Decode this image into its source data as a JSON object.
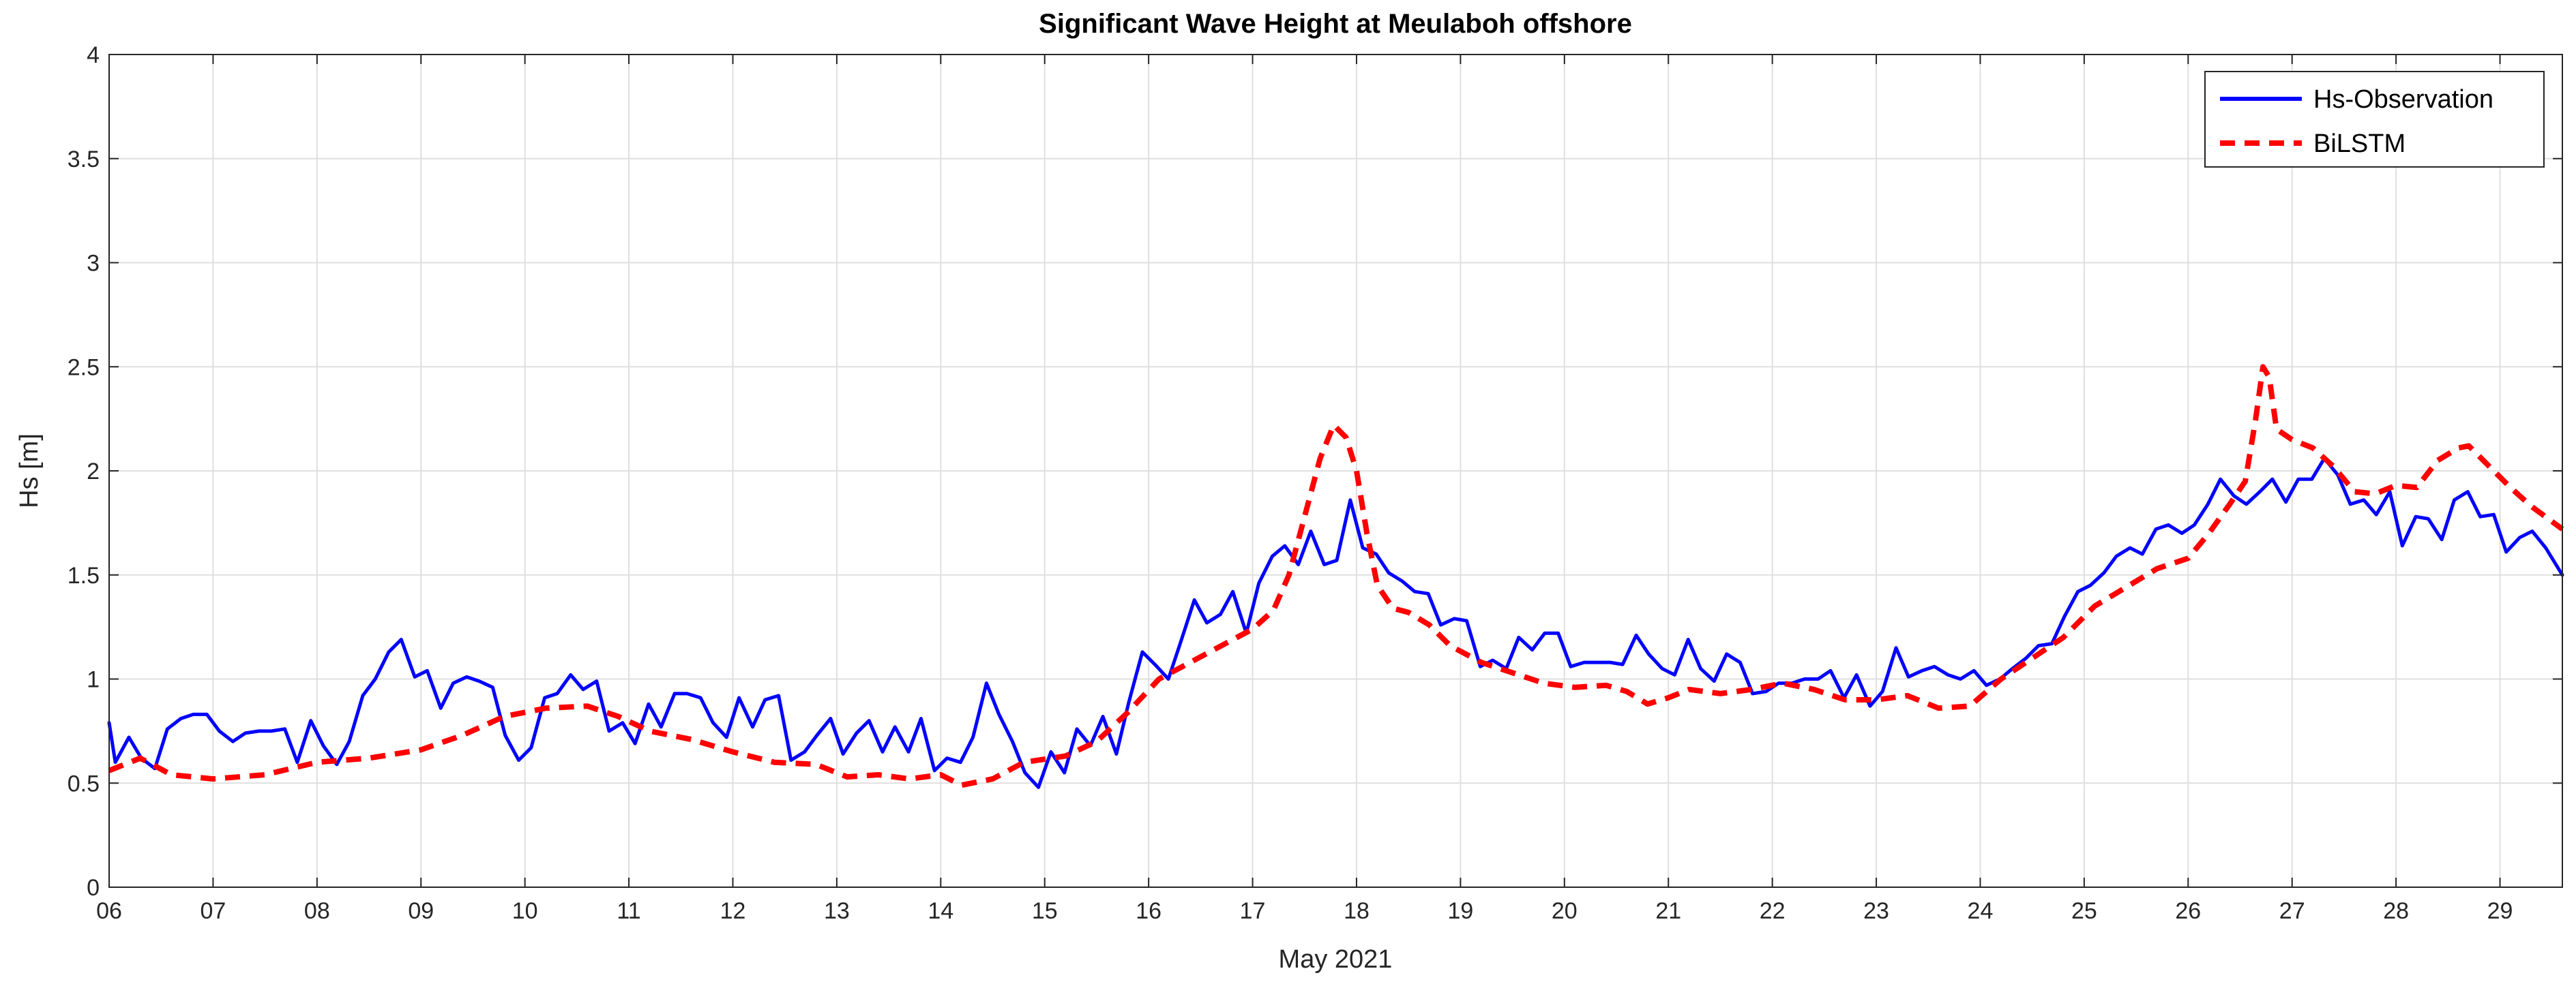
{
  "chart_data": {
    "type": "line",
    "title": "Significant Wave Height at Meulaboh offshore",
    "xlabel": "May 2021",
    "ylabel": "Hs [m]",
    "x_unit": "day of May 2021",
    "xlim": [
      6,
      29.6
    ],
    "ylim": [
      0,
      4
    ],
    "x_ticks": [
      6,
      7,
      8,
      9,
      10,
      11,
      12,
      13,
      14,
      15,
      16,
      17,
      18,
      19,
      20,
      21,
      22,
      23,
      24,
      25,
      26,
      27,
      28,
      29
    ],
    "x_tick_labels": [
      "06",
      "07",
      "08",
      "09",
      "10",
      "11",
      "12",
      "13",
      "14",
      "15",
      "16",
      "17",
      "18",
      "19",
      "20",
      "21",
      "22",
      "23",
      "24",
      "25",
      "26",
      "27",
      "28",
      "29"
    ],
    "y_ticks": [
      0,
      0.5,
      1,
      1.5,
      2,
      2.5,
      3,
      3.5,
      4
    ],
    "y_tick_labels": [
      "0",
      "0.5",
      "1",
      "1.5",
      "2",
      "2.5",
      "3",
      "3.5",
      "4"
    ],
    "grid": true,
    "legend_position": "top-right",
    "series": [
      {
        "name": "Hs-Observation",
        "color": "#0000ff",
        "style": "solid",
        "x": [
          6.0,
          6.06,
          6.19,
          6.31,
          6.44,
          6.56,
          6.69,
          6.81,
          6.94,
          7.06,
          7.19,
          7.31,
          7.44,
          7.56,
          7.69,
          7.81,
          7.94,
          8.06,
          8.19,
          8.31,
          8.44,
          8.56,
          8.69,
          8.81,
          8.94,
          9.06,
          9.19,
          9.31,
          9.44,
          9.56,
          9.69,
          9.81,
          9.94,
          10.06,
          10.19,
          10.31,
          10.44,
          10.56,
          10.69,
          10.81,
          10.94,
          11.06,
          11.19,
          11.31,
          11.44,
          11.56,
          11.69,
          11.81,
          11.94,
          12.06,
          12.19,
          12.31,
          12.44,
          12.56,
          12.69,
          12.81,
          12.94,
          13.06,
          13.19,
          13.31,
          13.44,
          13.56,
          13.69,
          13.81,
          13.94,
          14.06,
          14.19,
          14.31,
          14.44,
          14.56,
          14.69,
          14.81,
          14.94,
          15.06,
          15.19,
          15.31,
          15.44,
          15.56,
          15.69,
          15.81,
          15.94,
          16.06,
          16.19,
          16.31,
          16.44,
          16.56,
          16.69,
          16.81,
          16.94,
          17.06,
          17.19,
          17.31,
          17.44,
          17.56,
          17.69,
          17.81,
          17.94,
          18.06,
          18.19,
          18.31,
          18.44,
          18.56,
          18.69,
          18.81,
          18.94,
          19.06,
          19.19,
          19.31,
          19.44,
          19.56,
          19.69,
          19.81,
          19.94,
          20.06,
          20.19,
          20.31,
          20.44,
          20.56,
          20.69,
          20.81,
          20.94,
          21.06,
          21.19,
          21.31,
          21.44,
          21.56,
          21.69,
          21.81,
          21.94,
          22.06,
          22.19,
          22.31,
          22.44,
          22.56,
          22.69,
          22.81,
          22.94,
          23.06,
          23.19,
          23.31,
          23.44,
          23.56,
          23.69,
          23.81,
          23.94,
          24.06,
          24.19,
          24.31,
          24.44,
          24.56,
          24.69,
          24.81,
          24.94,
          25.06,
          25.19,
          25.31,
          25.44,
          25.56,
          25.69,
          25.81,
          25.94,
          26.06,
          26.19,
          26.31,
          26.44,
          26.56,
          26.69,
          26.81,
          26.94,
          27.06,
          27.19,
          27.31,
          27.44,
          27.56,
          27.69,
          27.81,
          27.94,
          28.06,
          28.19,
          28.31,
          28.44,
          28.56,
          28.69,
          28.81,
          28.94,
          29.06,
          29.19,
          29.31,
          29.44,
          29.6
        ],
        "values": [
          0.79,
          0.6,
          0.72,
          0.62,
          0.57,
          0.76,
          0.81,
          0.83,
          0.83,
          0.75,
          0.7,
          0.74,
          0.75,
          0.75,
          0.76,
          0.6,
          0.8,
          0.68,
          0.59,
          0.7,
          0.92,
          1.0,
          1.13,
          1.19,
          1.01,
          1.04,
          0.86,
          0.98,
          1.01,
          0.99,
          0.96,
          0.73,
          0.61,
          0.67,
          0.91,
          0.93,
          1.02,
          0.95,
          0.99,
          0.75,
          0.79,
          0.69,
          0.88,
          0.77,
          0.93,
          0.93,
          0.91,
          0.79,
          0.72,
          0.91,
          0.77,
          0.9,
          0.92,
          0.61,
          0.65,
          0.73,
          0.81,
          0.64,
          0.74,
          0.8,
          0.65,
          0.77,
          0.65,
          0.81,
          0.56,
          0.62,
          0.6,
          0.72,
          0.98,
          0.83,
          0.7,
          0.55,
          0.48,
          0.65,
          0.55,
          0.76,
          0.68,
          0.82,
          0.64,
          0.89,
          1.13,
          1.07,
          1.0,
          1.18,
          1.38,
          1.27,
          1.31,
          1.42,
          1.22,
          1.46,
          1.59,
          1.64,
          1.55,
          1.71,
          1.55,
          1.57,
          1.86,
          1.63,
          1.6,
          1.51,
          1.47,
          1.42,
          1.41,
          1.26,
          1.29,
          1.28,
          1.06,
          1.09,
          1.05,
          1.2,
          1.14,
          1.22,
          1.22,
          1.06,
          1.08,
          1.08,
          1.08,
          1.07,
          1.21,
          1.12,
          1.05,
          1.02,
          1.19,
          1.05,
          0.99,
          1.12,
          1.08,
          0.93,
          0.94,
          0.98,
          0.98,
          1.0,
          1.0,
          1.04,
          0.91,
          1.02,
          0.87,
          0.94,
          1.15,
          1.01,
          1.04,
          1.06,
          1.02,
          1.0,
          1.04,
          0.97,
          1.0,
          1.05,
          1.1,
          1.16,
          1.17,
          1.3,
          1.42,
          1.45,
          1.51,
          1.59,
          1.63,
          1.6,
          1.72,
          1.74,
          1.7,
          1.74,
          1.84,
          1.96,
          1.88,
          1.84,
          1.9,
          1.96,
          1.85,
          1.96,
          1.96,
          2.06,
          1.98,
          1.84,
          1.86,
          1.79,
          1.9,
          1.64,
          1.78,
          1.77,
          1.67,
          1.86,
          1.9,
          1.78,
          1.79,
          1.61,
          1.68,
          1.71,
          1.63,
          1.5
        ]
      },
      {
        "name": "BiLSTM",
        "color": "#ff0000",
        "style": "dashed",
        "x": [
          6.0,
          6.3,
          6.6,
          7.0,
          7.5,
          8.0,
          8.5,
          9.0,
          9.4,
          9.8,
          10.2,
          10.6,
          10.9,
          11.2,
          11.6,
          12.0,
          12.4,
          12.8,
          13.1,
          13.4,
          13.7,
          14.0,
          14.2,
          14.5,
          14.8,
          15.2,
          15.5,
          15.8,
          16.1,
          16.4,
          16.7,
          17.0,
          17.2,
          17.35,
          17.5,
          17.65,
          17.78,
          17.9,
          18.0,
          18.1,
          18.2,
          18.35,
          18.5,
          18.7,
          18.9,
          19.2,
          19.5,
          19.8,
          20.1,
          20.4,
          20.6,
          20.8,
          21.0,
          21.2,
          21.5,
          21.8,
          22.1,
          22.4,
          22.7,
          23.0,
          23.3,
          23.6,
          23.9,
          24.2,
          24.5,
          24.8,
          25.1,
          25.4,
          25.7,
          26.0,
          26.2,
          26.4,
          26.55,
          26.65,
          26.72,
          26.78,
          26.85,
          27.0,
          27.2,
          27.4,
          27.6,
          27.8,
          28.0,
          28.2,
          28.4,
          28.6,
          28.7,
          28.9,
          29.1,
          29.3,
          29.6
        ],
        "values": [
          0.56,
          0.62,
          0.54,
          0.52,
          0.54,
          0.6,
          0.62,
          0.66,
          0.73,
          0.82,
          0.86,
          0.87,
          0.82,
          0.75,
          0.71,
          0.65,
          0.6,
          0.59,
          0.53,
          0.54,
          0.52,
          0.54,
          0.49,
          0.52,
          0.6,
          0.63,
          0.7,
          0.84,
          1.0,
          1.08,
          1.16,
          1.24,
          1.33,
          1.5,
          1.78,
          2.06,
          2.22,
          2.16,
          2.0,
          1.7,
          1.45,
          1.34,
          1.32,
          1.26,
          1.16,
          1.08,
          1.03,
          0.98,
          0.96,
          0.97,
          0.94,
          0.88,
          0.91,
          0.95,
          0.93,
          0.95,
          0.98,
          0.95,
          0.9,
          0.9,
          0.92,
          0.86,
          0.87,
          1.0,
          1.1,
          1.2,
          1.35,
          1.44,
          1.53,
          1.58,
          1.7,
          1.84,
          1.95,
          2.25,
          2.5,
          2.45,
          2.2,
          2.15,
          2.11,
          2.02,
          1.9,
          1.89,
          1.93,
          1.92,
          2.05,
          2.11,
          2.12,
          2.02,
          1.92,
          1.83,
          1.72
        ]
      }
    ]
  }
}
